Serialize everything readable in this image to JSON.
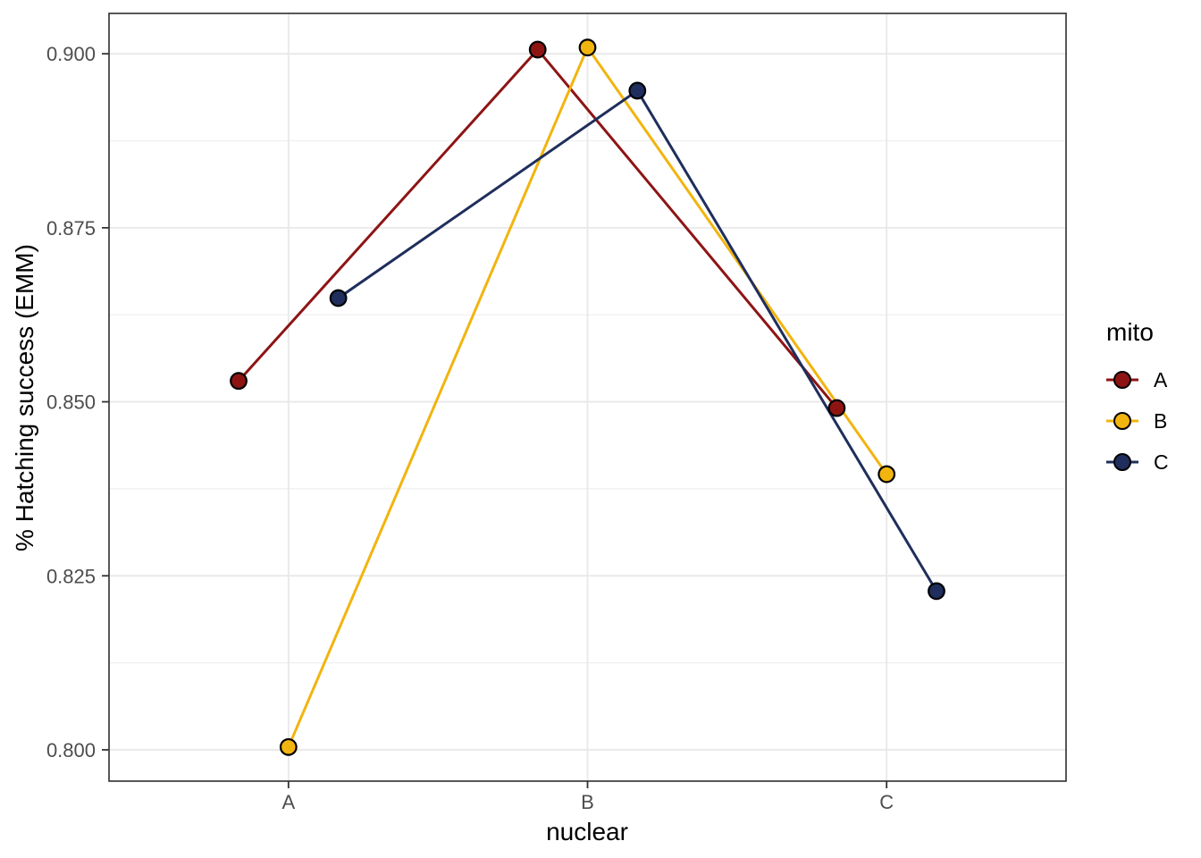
{
  "chart_data": {
    "type": "line",
    "title": "",
    "xlabel": "nuclear",
    "ylabel": "% Hatching success (EMM)",
    "x_categories": [
      "A",
      "B",
      "C"
    ],
    "series": [
      {
        "name": "A",
        "color": "#8E1414",
        "dodge_offset": -0.1667,
        "values": [
          0.853,
          0.9006,
          0.8491
        ]
      },
      {
        "name": "B",
        "color": "#F2B40E",
        "dodge_offset": 0.0,
        "values": [
          0.8004,
          0.9009,
          0.8396
        ]
      },
      {
        "name": "C",
        "color": "#1F2E5C",
        "dodge_offset": 0.1667,
        "values": [
          0.8649,
          0.8947,
          0.8228
        ]
      }
    ],
    "y_ticks": [
      {
        "value": 0.9,
        "label": "0.900"
      },
      {
        "value": 0.875,
        "label": "0.875"
      },
      {
        "value": 0.85,
        "label": "0.850"
      },
      {
        "value": 0.825,
        "label": "0.825"
      },
      {
        "value": 0.8,
        "label": "0.800"
      }
    ],
    "y_minor_gridlines": [
      0.8875,
      0.8625,
      0.8375,
      0.8125
    ],
    "ylim": [
      0.7955,
      0.9058
    ],
    "x_axis_units": {
      "min": 0.4,
      "max": 3.6,
      "category_positions": [
        1,
        2,
        3
      ]
    },
    "legend": {
      "title": "mito",
      "position": "right",
      "entries": [
        {
          "label": "A",
          "color": "#8E1414"
        },
        {
          "label": "B",
          "color": "#F2B40E"
        },
        {
          "label": "C",
          "color": "#1F2E5C"
        }
      ]
    },
    "grid": {
      "shown": true,
      "major_color": "#E8E8E8",
      "minor_color": "#EFEFEF"
    },
    "style": {
      "panel_border_color": "#2F2F2F",
      "tick_color": "#333333",
      "tick_label_color": "#4D4D4D",
      "point_outline_color": "#000000",
      "point_radius": 8.8,
      "point_stroke_width": 2.2,
      "line_width": 3
    }
  }
}
